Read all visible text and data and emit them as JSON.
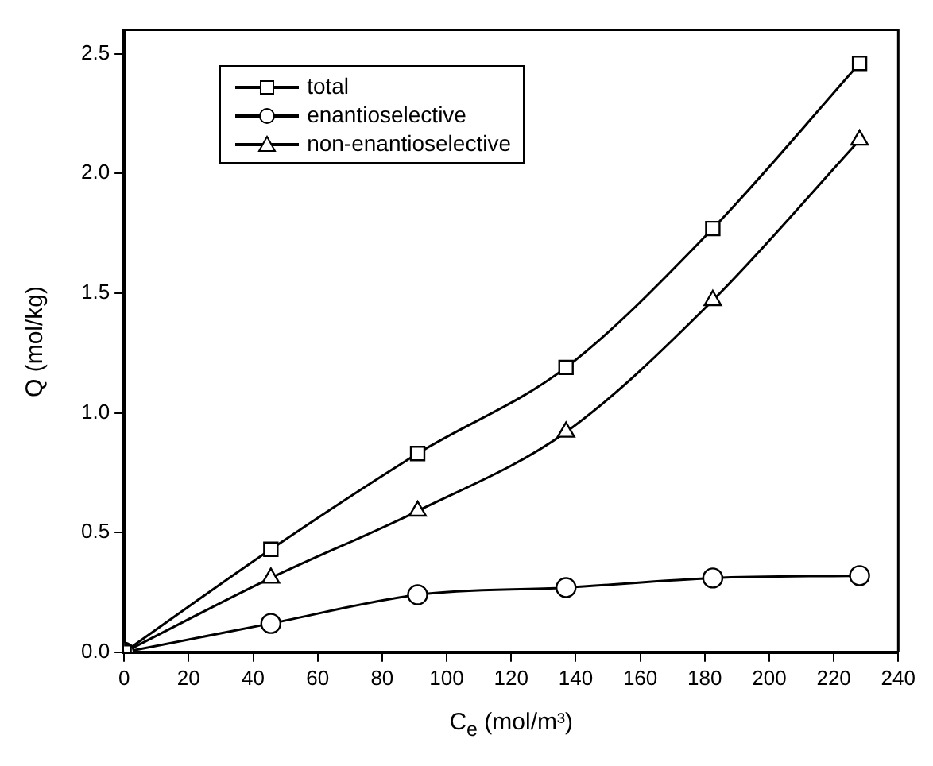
{
  "chart_data": {
    "type": "line",
    "xlabel": "C$_{e}$ (mol/m³)",
    "ylabel": "Q (mol/kg)",
    "x": [
      0,
      45.5,
      91,
      137,
      182.5,
      228
    ],
    "xlim": [
      0,
      240
    ],
    "xticks": [
      0,
      20,
      40,
      60,
      80,
      100,
      120,
      140,
      160,
      180,
      200,
      220,
      240
    ],
    "ylim": [
      0,
      2.6
    ],
    "yticks": [
      {
        "value": 0,
        "label": "0.0"
      },
      0.5,
      {
        "value": 1,
        "label": "1.0"
      },
      1.5,
      {
        "value": 2,
        "label": "2.0"
      },
      2.5
    ],
    "grid": false,
    "legend": "top left",
    "series": [
      {
        "name": "total",
        "color": "#000000",
        "marker": "square",
        "values": [
          0,
          0.43,
          0.83,
          1.19,
          1.77,
          2.46
        ]
      },
      {
        "name": "enantioselective",
        "color": "#000000",
        "marker": "circle",
        "values": [
          0,
          0.12,
          0.24,
          0.27,
          0.31,
          0.32
        ]
      },
      {
        "name": "non-enantioselective",
        "color": "#000000",
        "marker": "triangle",
        "values": [
          0,
          0.31,
          0.59,
          0.92,
          1.47,
          2.14
        ]
      }
    ]
  }
}
